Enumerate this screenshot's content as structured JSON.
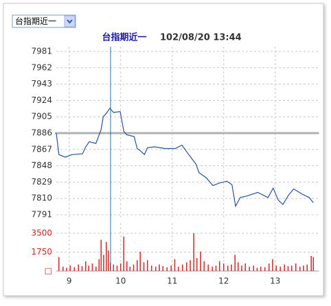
{
  "header": {
    "dropdown": "台指期近一"
  },
  "chart_data": [
    {
      "type": "line",
      "title": "台指期近一",
      "subtitle": "102/08/20 13:44",
      "x": [
        8.75,
        8.8,
        8.92,
        9.06,
        9.26,
        9.32,
        9.39,
        9.52,
        9.62,
        9.66,
        9.72,
        9.79,
        9.86,
        9.99,
        10.06,
        10.12,
        10.26,
        10.32,
        10.39,
        10.46,
        10.52,
        10.66,
        10.86,
        11.06,
        11.19,
        11.32,
        11.46,
        11.52,
        11.66,
        11.79,
        11.92,
        12.06,
        12.16,
        12.23,
        12.32,
        12.46,
        12.66,
        12.86,
        12.96,
        13.06,
        13.15,
        13.26,
        13.36,
        13.52,
        13.66,
        13.74
      ],
      "values": [
        7886,
        7861,
        7858,
        7861,
        7862,
        7870,
        7876,
        7874,
        7890,
        7905,
        7909,
        7915,
        7910,
        7911,
        7888,
        7884,
        7882,
        7868,
        7865,
        7861,
        7869,
        7870,
        7868,
        7868,
        7872,
        7861,
        7850,
        7840,
        7834,
        7825,
        7828,
        7830,
        7826,
        7801,
        7811,
        7813,
        7817,
        7811,
        7822,
        7808,
        7803,
        7814,
        7821,
        7815,
        7811,
        7805
      ],
      "color": "#2a4f9c",
      "reference": 7886,
      "reference_color": "#b0b0b0",
      "xlim": [
        8.75,
        13.85
      ],
      "xticks": [
        9,
        10,
        11,
        12,
        13
      ],
      "ylim": [
        7791,
        7981
      ],
      "yticks": [
        7981,
        7962,
        7943,
        7924,
        7905,
        7886,
        7867,
        7848,
        7829,
        7810,
        7791
      ],
      "grid": true
    },
    {
      "type": "bar",
      "x": [
        8.8,
        8.88,
        8.95,
        9.02,
        9.1,
        9.18,
        9.25,
        9.32,
        9.38,
        9.45,
        9.52,
        9.58,
        9.62,
        9.67,
        9.72,
        9.76,
        9.8,
        9.86,
        9.93,
        10.0,
        10.06,
        10.12,
        10.18,
        10.25,
        10.32,
        10.38,
        10.45,
        10.52,
        10.6,
        10.68,
        10.75,
        10.82,
        10.9,
        10.98,
        11.05,
        11.12,
        11.2,
        11.28,
        11.35,
        11.42,
        11.48,
        11.55,
        11.62,
        11.7,
        11.78,
        11.85,
        11.92,
        12.0,
        12.08,
        12.15,
        12.22,
        12.28,
        12.35,
        12.42,
        12.5,
        12.58,
        12.65,
        12.72,
        12.8,
        12.88,
        12.95,
        13.02,
        13.1,
        13.18,
        13.25,
        13.32,
        13.4,
        13.48,
        13.55,
        13.62,
        13.7,
        13.74
      ],
      "values": [
        1300,
        400,
        300,
        500,
        350,
        600,
        450,
        900,
        500,
        700,
        400,
        1100,
        2900,
        1500,
        2700,
        1900,
        800,
        600,
        500,
        700,
        3200,
        900,
        400,
        600,
        1000,
        1800,
        800,
        1000,
        500,
        400,
        600,
        450,
        350,
        500,
        1100,
        400,
        600,
        800,
        1000,
        3500,
        1200,
        1800,
        900,
        600,
        400,
        500,
        900,
        700,
        500,
        600,
        1500,
        800,
        500,
        700,
        400,
        500,
        300,
        400,
        350,
        700,
        1100,
        500,
        400,
        600,
        450,
        500,
        700,
        400,
        500,
        600,
        1400,
        1300
      ],
      "color": "#cc3333",
      "xlim": [
        8.75,
        13.85
      ],
      "xticks": [
        9,
        10,
        11,
        12,
        13
      ],
      "ylim": [
        0,
        3500
      ],
      "yticks": [
        3500,
        1750,
        {
          "value": 0,
          "label": "□"
        }
      ],
      "grid": true
    }
  ]
}
